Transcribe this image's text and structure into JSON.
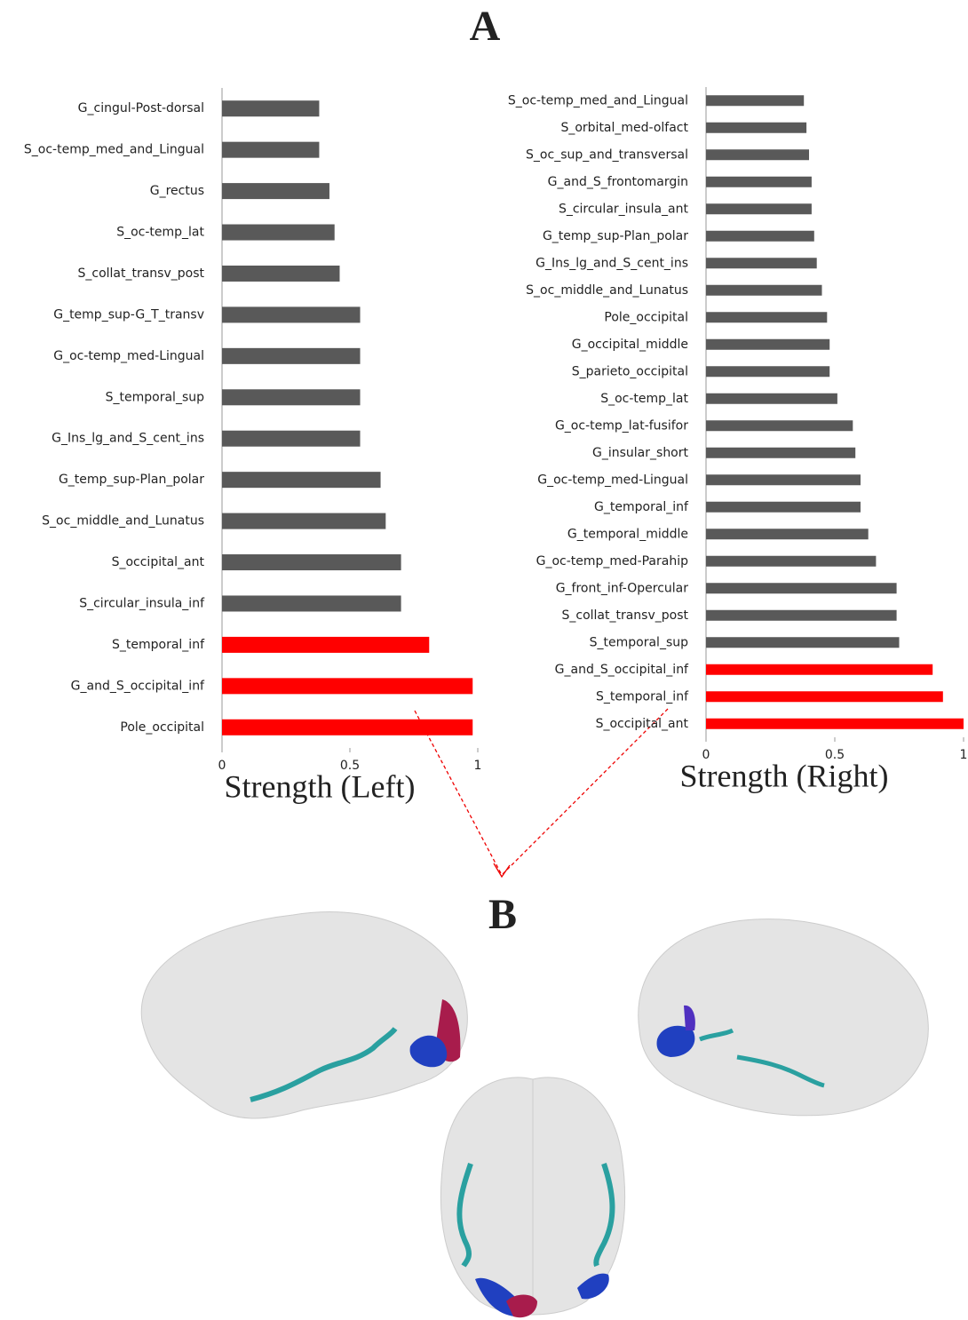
{
  "panel_labels": [
    "A",
    "B"
  ],
  "chart_data": [
    {
      "type": "barh",
      "xlabel": "Strength (Left)",
      "xlim": [
        0,
        1
      ],
      "xticks": [
        0,
        0.5,
        1
      ],
      "categories": [
        "G_cingul-Post-dorsal",
        "S_oc-temp_med_and_Lingual",
        "G_rectus",
        "S_oc-temp_lat",
        "S_collat_transv_post",
        "G_temp_sup-G_T_transv",
        "G_oc-temp_med-Lingual",
        "S_temporal_sup",
        "G_Ins_lg_and_S_cent_ins",
        "G_temp_sup-Plan_polar",
        "S_oc_middle_and_Lunatus",
        "S_occipital_ant",
        "S_circular_insula_inf",
        "S_temporal_inf",
        "G_and_S_occipital_inf",
        "Pole_occipital"
      ],
      "values": [
        0.38,
        0.38,
        0.42,
        0.44,
        0.46,
        0.54,
        0.54,
        0.54,
        0.54,
        0.62,
        0.64,
        0.7,
        0.7,
        0.81,
        0.98,
        0.98
      ],
      "colors": [
        "#595959",
        "#595959",
        "#595959",
        "#595959",
        "#595959",
        "#595959",
        "#595959",
        "#595959",
        "#595959",
        "#595959",
        "#595959",
        "#595959",
        "#595959",
        "#ff0000",
        "#ff0000",
        "#ff0000"
      ]
    },
    {
      "type": "barh",
      "xlabel": "Strength (Right)",
      "xlim": [
        0,
        1
      ],
      "xticks": [
        0,
        0.5,
        1
      ],
      "categories": [
        "S_oc-temp_med_and_Lingual",
        "S_orbital_med-olfact",
        "S_oc_sup_and_transversal",
        "G_and_S_frontomargin",
        "S_circular_insula_ant",
        "G_temp_sup-Plan_polar",
        "G_Ins_lg_and_S_cent_ins",
        "S_oc_middle_and_Lunatus",
        "Pole_occipital",
        "G_occipital_middle",
        "S_parieto_occipital",
        "S_oc-temp_lat",
        "G_oc-temp_lat-fusifor",
        "G_insular_short",
        "G_oc-temp_med-Lingual",
        "G_temporal_inf",
        "G_temporal_middle",
        "G_oc-temp_med-Parahip",
        "G_front_inf-Opercular",
        "S_collat_transv_post",
        "S_temporal_sup",
        "G_and_S_occipital_inf",
        "S_temporal_inf",
        "S_occipital_ant"
      ],
      "values": [
        0.38,
        0.39,
        0.4,
        0.41,
        0.41,
        0.42,
        0.43,
        0.45,
        0.47,
        0.48,
        0.48,
        0.51,
        0.57,
        0.58,
        0.6,
        0.6,
        0.63,
        0.66,
        0.74,
        0.74,
        0.75,
        0.88,
        0.92,
        1.0
      ],
      "colors": [
        "#595959",
        "#595959",
        "#595959",
        "#595959",
        "#595959",
        "#595959",
        "#595959",
        "#595959",
        "#595959",
        "#595959",
        "#595959",
        "#595959",
        "#595959",
        "#595959",
        "#595959",
        "#595959",
        "#595959",
        "#595959",
        "#595959",
        "#595959",
        "#595959",
        "#ff0000",
        "#ff0000",
        "#ff0000"
      ]
    }
  ]
}
